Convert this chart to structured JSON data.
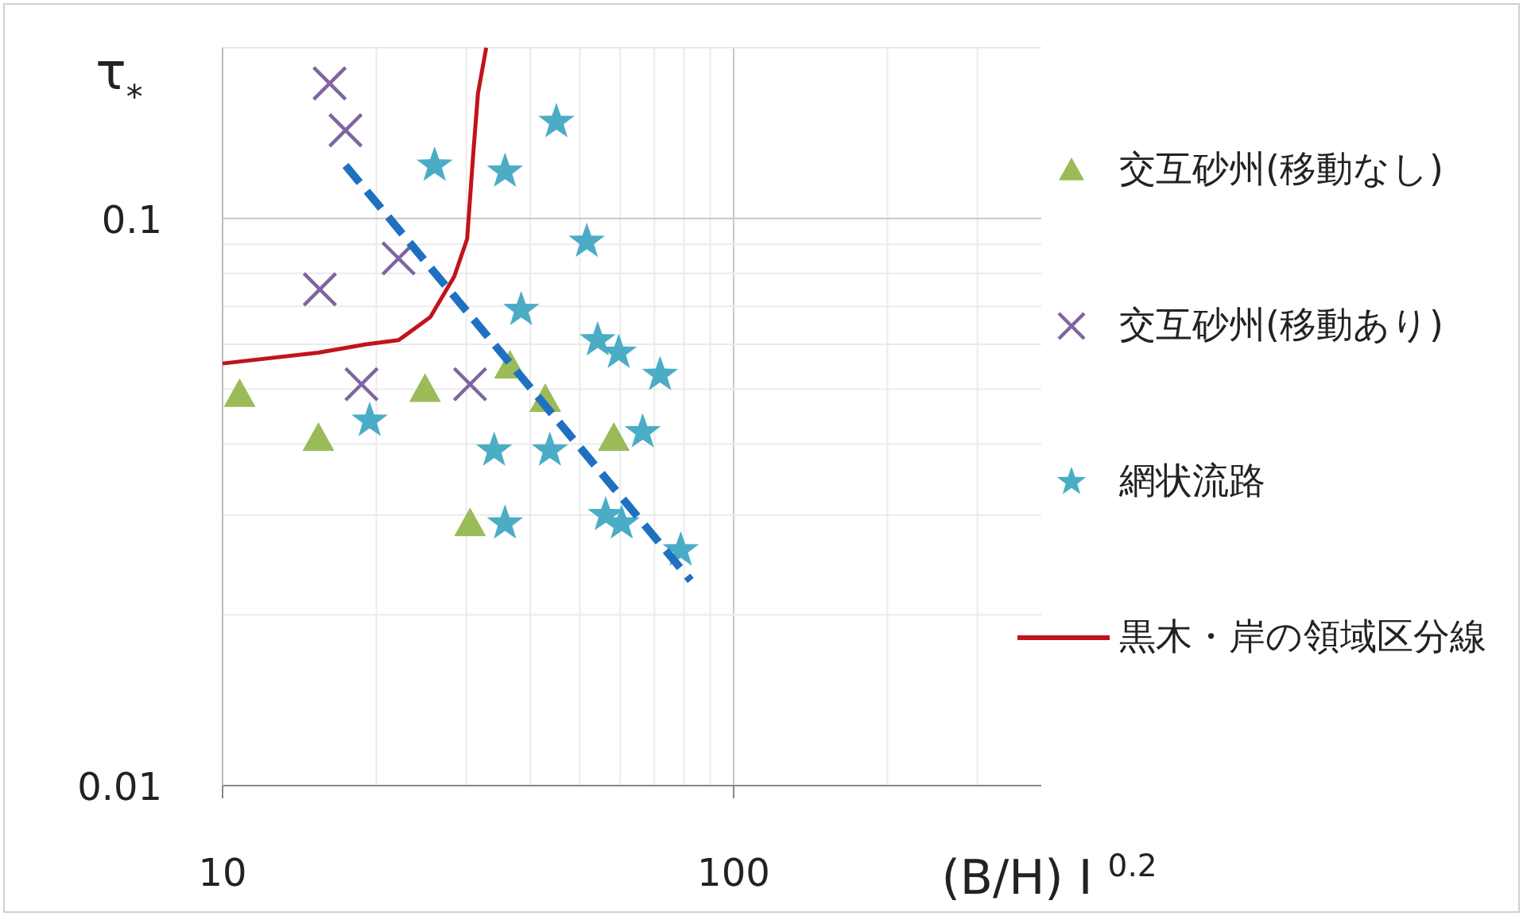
{
  "chart_data": {
    "type": "scatter",
    "xlabel": "(B/H) I $^{0.2}$",
    "ylabel": "τ$_{*}$",
    "log": "xy",
    "grid": true,
    "legend": "right",
    "xlim": [
      10,
      400
    ],
    "ylim": [
      0.01,
      0.2
    ],
    "xticks": [
      10,
      {
        "value": 20,
        "label": null
      },
      {
        "value": 30,
        "label": null
      },
      {
        "value": 40,
        "label": null
      },
      {
        "value": 50,
        "label": null
      },
      {
        "value": 60,
        "label": null
      },
      {
        "value": 70,
        "label": null
      },
      {
        "value": 80,
        "label": null
      },
      {
        "value": 90,
        "label": null
      },
      100,
      {
        "value": 200,
        "label": null
      },
      {
        "value": 300,
        "label": null
      }
    ],
    "yticks": [
      0.01,
      {
        "value": 0.02,
        "label": null
      },
      {
        "value": 0.03,
        "label": null
      },
      {
        "value": 0.04,
        "label": null
      },
      {
        "value": 0.05,
        "label": null
      },
      {
        "value": 0.06,
        "label": null
      },
      {
        "value": 0.07,
        "label": null
      },
      {
        "value": 0.08,
        "label": null
      },
      {
        "value": 0.09,
        "label": null
      },
      0.1,
      {
        "value": 0.2,
        "label": null
      }
    ],
    "series": [
      {
        "name": "交互砂州(移動なし)",
        "type": "scatter",
        "marker": "triangle",
        "color": "#9bbb59",
        "x": [
          10.8,
          15.4,
          24.9,
          30.5,
          36.5,
          42.8,
          58.3
        ],
        "values": [
          0.049,
          0.041,
          0.05,
          0.029,
          0.055,
          0.048,
          0.041
        ]
      },
      {
        "name": "交互砂州(移動あり)",
        "type": "scatter",
        "marker": "cross",
        "color": "#8064a2",
        "x": [
          16.2,
          17.4,
          15.5,
          22.1,
          18.7,
          30.5
        ],
        "values": [
          0.173,
          0.143,
          0.075,
          0.085,
          0.051,
          0.051
        ]
      },
      {
        "name": "網状流路",
        "type": "scatter",
        "marker": "star",
        "color": "#4bacc6",
        "x": [
          45.0,
          26.0,
          35.7,
          51.6,
          38.4,
          19.4,
          34.0,
          43.7,
          35.7,
          54.2,
          59.6,
          71.8,
          66.4,
          56.2,
          60.4,
          78.8
        ],
        "values": [
          0.148,
          0.124,
          0.121,
          0.091,
          0.069,
          0.044,
          0.039,
          0.039,
          0.029,
          0.061,
          0.058,
          0.053,
          0.042,
          0.03,
          0.029,
          0.026
        ]
      },
      {
        "name": "黒木・岸の領域区分線",
        "type": "line",
        "marker": "none",
        "line_style": "solid",
        "color": "#c0141c",
        "x": [
          10,
          15.4,
          19.1,
          22.1,
          25.5,
          28.4,
          30.1,
          30.9,
          31.6,
          32.8
        ],
        "values": [
          0.0555,
          0.058,
          0.06,
          0.061,
          0.067,
          0.079,
          0.092,
          0.128,
          0.166,
          0.2
        ]
      },
      {
        "type": "line",
        "marker": "none",
        "line_style": "dashed",
        "color": "#1f70c1",
        "x": [
          17.4,
          82.4
        ],
        "values": [
          0.124,
          0.023
        ]
      }
    ]
  }
}
